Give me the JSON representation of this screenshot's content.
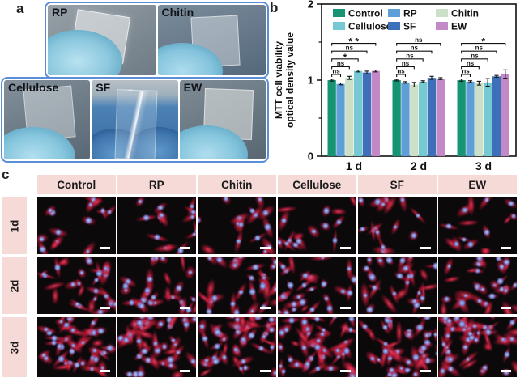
{
  "figure": {
    "panel_a": {
      "label": "a",
      "photos": [
        {
          "label": "RP"
        },
        {
          "label": "Chitin"
        },
        {
          "label": "Cellulose"
        },
        {
          "label": "SF"
        },
        {
          "label": "EW"
        }
      ]
    },
    "panel_b": {
      "label": "b"
    },
    "panel_c": {
      "label": "c",
      "columns": [
        "Control",
        "RP",
        "Chitin",
        "Cellulose",
        "SF",
        "EW"
      ],
      "rows": [
        "1d",
        "2d",
        "3d"
      ]
    }
  },
  "chart_data": {
    "type": "bar",
    "title": "",
    "xlabel": "",
    "ylabel_line1": "MTT cell viability",
    "ylabel_line2": "optical density value",
    "categories": [
      "1 d",
      "2 d",
      "3 d"
    ],
    "ylim": [
      0,
      2
    ],
    "yticks": [
      0,
      1,
      2
    ],
    "yticks_minor": [
      0.5,
      1.5
    ],
    "grid": false,
    "legend_position": "top-inside, 2 rows x 3 cols",
    "series": [
      {
        "name": "Control",
        "color": "#169474",
        "values": [
          1.0,
          1.0,
          1.0
        ],
        "errors": [
          0.012,
          0.01,
          0.015
        ]
      },
      {
        "name": "RP",
        "color": "#5e9fd8",
        "values": [
          0.95,
          0.97,
          0.98
        ],
        "errors": [
          0.012,
          0.01,
          0.012
        ]
      },
      {
        "name": "Chitin",
        "color": "#cbe0c7",
        "values": [
          1.03,
          0.94,
          0.96
        ],
        "errors": [
          0.02,
          0.03,
          0.025
        ]
      },
      {
        "name": "Cellulose",
        "color": "#74c9d3",
        "values": [
          1.12,
          0.98,
          0.97
        ],
        "errors": [
          0.012,
          0.012,
          0.05
        ]
      },
      {
        "name": "SF",
        "color": "#3e6fb9",
        "values": [
          1.1,
          1.03,
          1.05
        ],
        "errors": [
          0.018,
          0.02,
          0.012
        ]
      },
      {
        "name": "EW",
        "color": "#c289c6",
        "values": [
          1.12,
          1.02,
          1.08
        ],
        "errors": [
          0.012,
          0.012,
          0.055
        ]
      }
    ],
    "significance_note": "brackets compare Control vs each series, bottom to top: RP, Chitin, Cellulose, SF, EW",
    "significance": {
      "1 d": [
        "ns",
        "ns",
        "*",
        "ns",
        "**"
      ],
      "2 d": [
        "ns",
        "ns",
        "ns",
        "ns",
        "ns"
      ],
      "3 d": [
        "ns",
        "ns",
        "ns",
        "ns",
        "*"
      ]
    }
  }
}
